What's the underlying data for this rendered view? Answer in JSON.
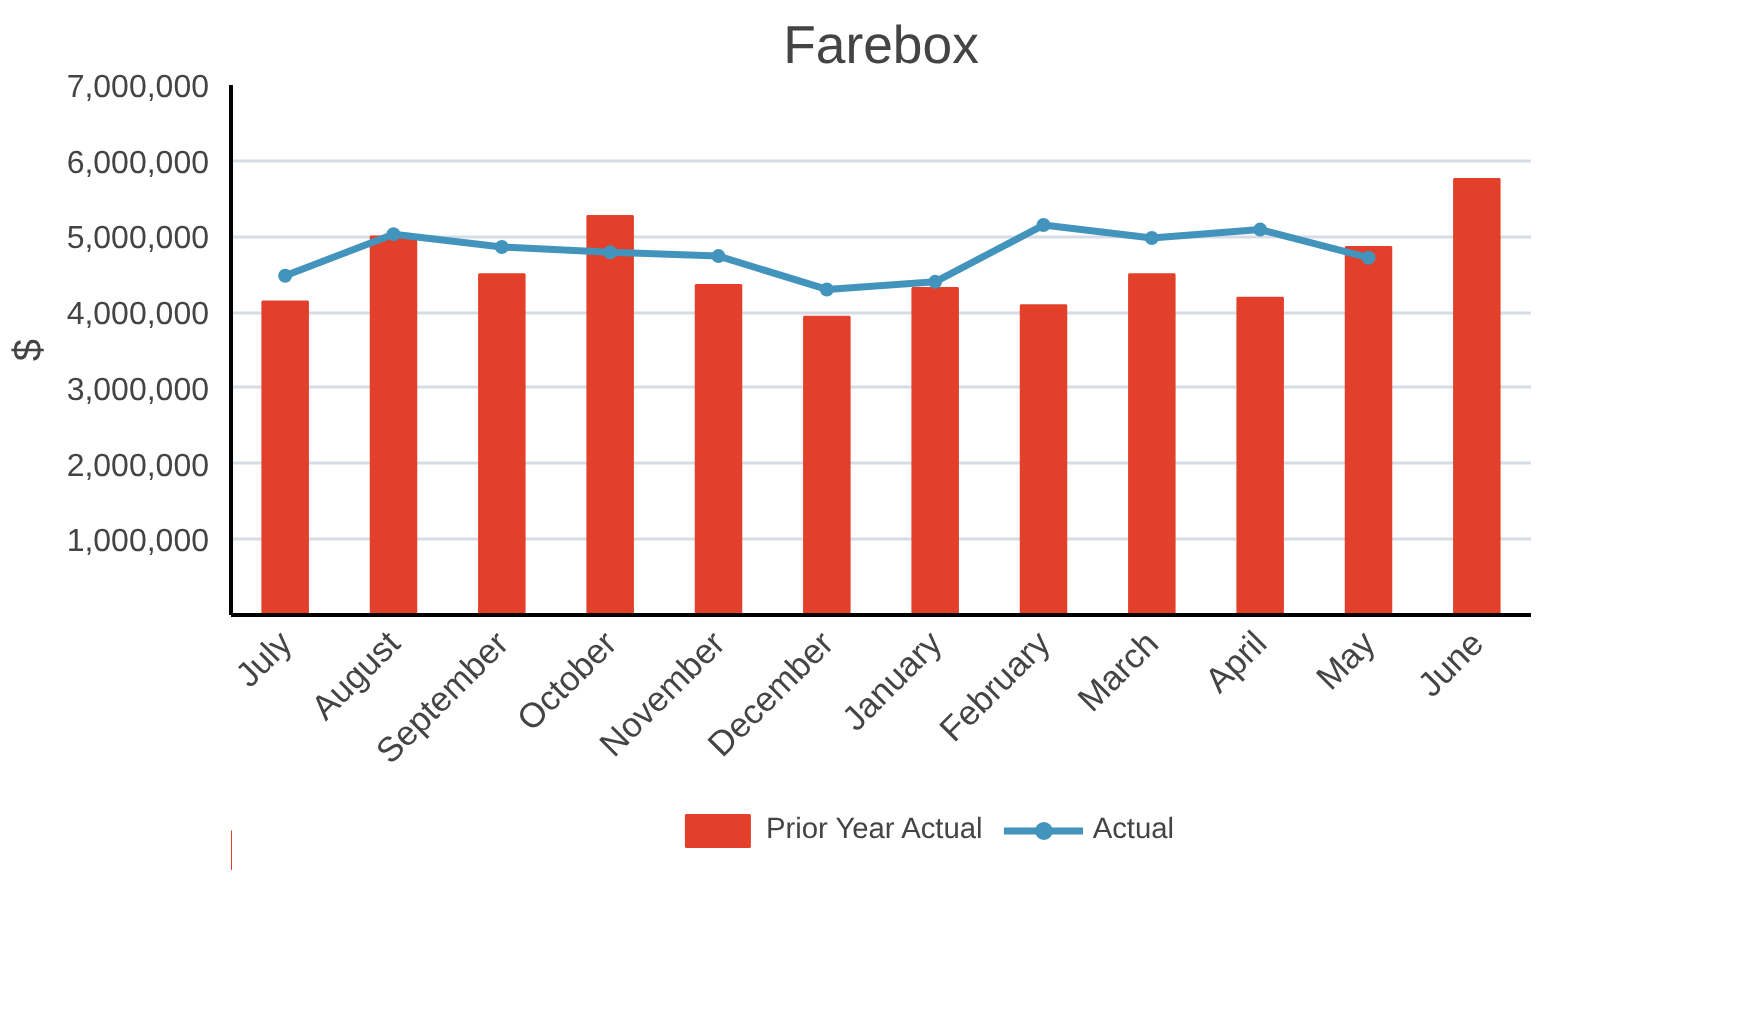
{
  "chart_data": {
    "type": "bar",
    "title": "Farebox",
    "ylabel": "$",
    "categories": [
      "July",
      "August",
      "September",
      "October",
      "November",
      "December",
      "January",
      "February",
      "March",
      "April",
      "May",
      "June"
    ],
    "series": [
      {
        "name": "Prior Year Actual",
        "type": "bar",
        "color": "#e2402a",
        "values": [
          4140000,
          5000000,
          4500000,
          5270000,
          4360000,
          3940000,
          4320000,
          4090000,
          4500000,
          4190000,
          4860000,
          5760000
        ]
      },
      {
        "name": "Actual",
        "type": "line",
        "color": "#4394bd",
        "marker": "circle",
        "values": [
          4480000,
          5030000,
          4860000,
          4790000,
          4740000,
          4300000,
          4400000,
          5150000,
          4980000,
          5090000,
          4720000,
          null
        ]
      }
    ],
    "ylim": [
      0,
      7000000
    ],
    "yticks": [
      {
        "value": 1000000,
        "label": "1,000,000"
      },
      {
        "value": 2000000,
        "label": "2,000,000"
      },
      {
        "value": 3000000,
        "label": "3,000,000"
      },
      {
        "value": 4000000,
        "label": "4,000,000"
      },
      {
        "value": 5000000,
        "label": "5,000,000"
      },
      {
        "value": 6000000,
        "label": "6,000,000"
      },
      {
        "value": 7000000,
        "label": "7,000,000"
      }
    ],
    "grid": "y",
    "legend": "bottom"
  }
}
